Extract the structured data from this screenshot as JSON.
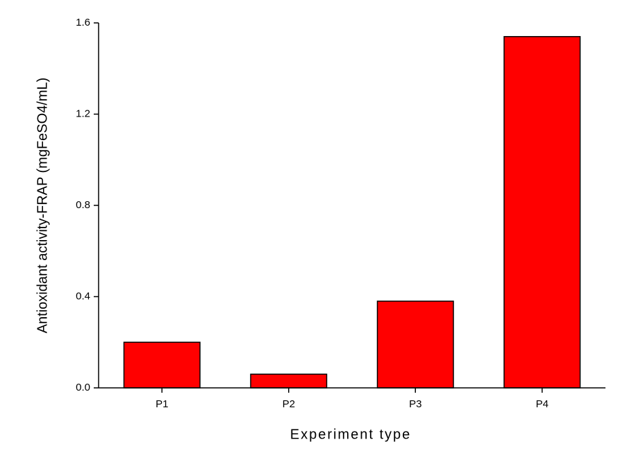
{
  "chart_data": {
    "type": "bar",
    "y_label": "Antioxidant activity-FRAP (mgFeSO4/mL)",
    "x_label": "Experiment type",
    "categories": [
      "P1",
      "P2",
      "P3",
      "P4"
    ],
    "values": [
      0.2,
      0.06,
      0.38,
      1.54
    ],
    "color": "#ff0000",
    "ylim": [
      0,
      1.6
    ],
    "yticks": [
      {
        "value": 0,
        "label": "0.0"
      },
      {
        "value": 0.4,
        "label": "0.4"
      },
      {
        "value": 0.8,
        "label": "0.8"
      },
      {
        "value": 1.2,
        "label": "1.2"
      },
      {
        "value": 1.6,
        "label": "1.6"
      }
    ],
    "grid": false
  }
}
